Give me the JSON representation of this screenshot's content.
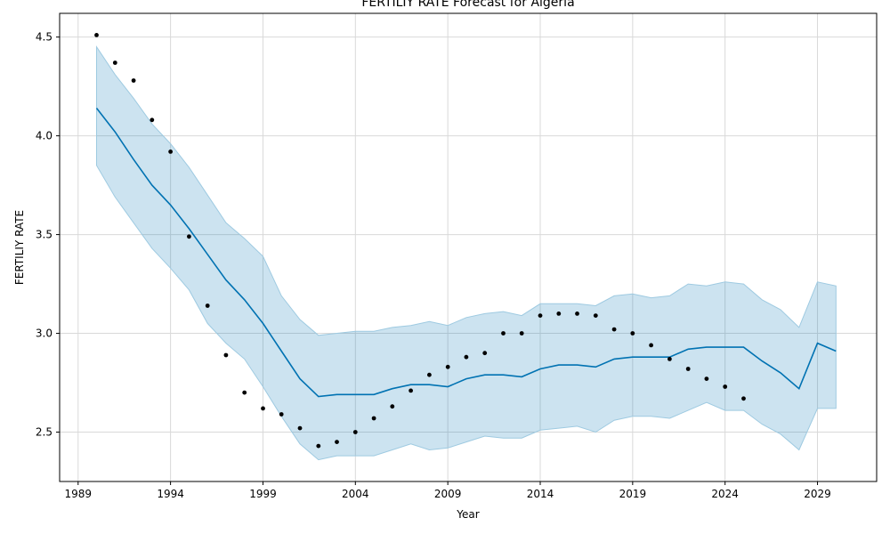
{
  "chart_data": {
    "type": "line",
    "title": "FERTILIY RATE Forecast for Algeria",
    "xlabel": "Year",
    "ylabel": "FERTILIY RATE",
    "xlim": [
      1988,
      2032.2
    ],
    "ylim": [
      2.25,
      4.62
    ],
    "grid": true,
    "x_ticks": [
      1989,
      1994,
      1999,
      2004,
      2009,
      2014,
      2019,
      2024,
      2029
    ],
    "y_ticks": [
      2.5,
      3.0,
      3.5,
      4.0,
      4.5
    ],
    "y_tick_labels": [
      "2.5",
      "3.0",
      "3.5",
      "4.0",
      "4.5"
    ],
    "colors": {
      "forecast_line": "#0072b2",
      "interval_fill": "#0072b2",
      "interval_edge": "#9ecae1",
      "observed": "#000000",
      "grid": "#d9d9d9"
    },
    "observed": {
      "x": [
        1990,
        1991,
        1992,
        1993,
        1994,
        1995,
        1996,
        1997,
        1998,
        1999,
        2000,
        2001,
        2002,
        2003,
        2004,
        2005,
        2006,
        2007,
        2008,
        2009,
        2010,
        2011,
        2012,
        2013,
        2014,
        2015,
        2016,
        2017,
        2018,
        2019,
        2020,
        2021,
        2022,
        2023,
        2024,
        2025
      ],
      "y": [
        4.51,
        4.37,
        4.28,
        4.08,
        3.92,
        3.49,
        3.14,
        2.89,
        2.7,
        2.62,
        2.59,
        2.52,
        2.43,
        2.45,
        2.5,
        2.57,
        2.63,
        2.71,
        2.79,
        2.83,
        2.88,
        2.9,
        3.0,
        3.0,
        3.09,
        3.1,
        3.1,
        3.09,
        3.02,
        3.0,
        2.94,
        2.87,
        2.82,
        2.77,
        2.73,
        2.67
      ]
    },
    "forecast": {
      "x": [
        1990,
        1991,
        1992,
        1993,
        1994,
        1995,
        1996,
        1997,
        1998,
        1999,
        2000,
        2001,
        2002,
        2003,
        2004,
        2005,
        2006,
        2007,
        2008,
        2009,
        2010,
        2011,
        2012,
        2013,
        2014,
        2015,
        2016,
        2017,
        2018,
        2019,
        2020,
        2021,
        2022,
        2023,
        2024,
        2025,
        2026,
        2027,
        2028,
        2029,
        2030
      ],
      "yhat": [
        4.14,
        4.02,
        3.88,
        3.75,
        3.65,
        3.53,
        3.4,
        3.27,
        3.17,
        3.05,
        2.91,
        2.77,
        2.68,
        2.69,
        2.69,
        2.69,
        2.72,
        2.74,
        2.74,
        2.73,
        2.77,
        2.79,
        2.79,
        2.78,
        2.82,
        2.84,
        2.84,
        2.83,
        2.87,
        2.88,
        2.88,
        2.88,
        2.92,
        2.93,
        2.93,
        2.93,
        2.86,
        2.8,
        2.72,
        2.95,
        2.91
      ],
      "lower": [
        3.85,
        3.69,
        3.56,
        3.43,
        3.33,
        3.22,
        3.05,
        2.95,
        2.87,
        2.73,
        2.58,
        2.44,
        2.36,
        2.38,
        2.38,
        2.38,
        2.41,
        2.44,
        2.41,
        2.42,
        2.45,
        2.48,
        2.47,
        2.47,
        2.51,
        2.52,
        2.53,
        2.5,
        2.56,
        2.58,
        2.58,
        2.57,
        2.61,
        2.65,
        2.61,
        2.61,
        2.54,
        2.49,
        2.41,
        2.62,
        2.62
      ],
      "upper": [
        4.45,
        4.31,
        4.19,
        4.06,
        3.96,
        3.84,
        3.7,
        3.56,
        3.48,
        3.39,
        3.19,
        3.07,
        2.99,
        3.0,
        3.01,
        3.01,
        3.03,
        3.04,
        3.06,
        3.04,
        3.08,
        3.1,
        3.11,
        3.09,
        3.15,
        3.15,
        3.15,
        3.14,
        3.19,
        3.2,
        3.18,
        3.19,
        3.25,
        3.24,
        3.26,
        3.25,
        3.17,
        3.12,
        3.03,
        3.26,
        3.24
      ]
    }
  }
}
